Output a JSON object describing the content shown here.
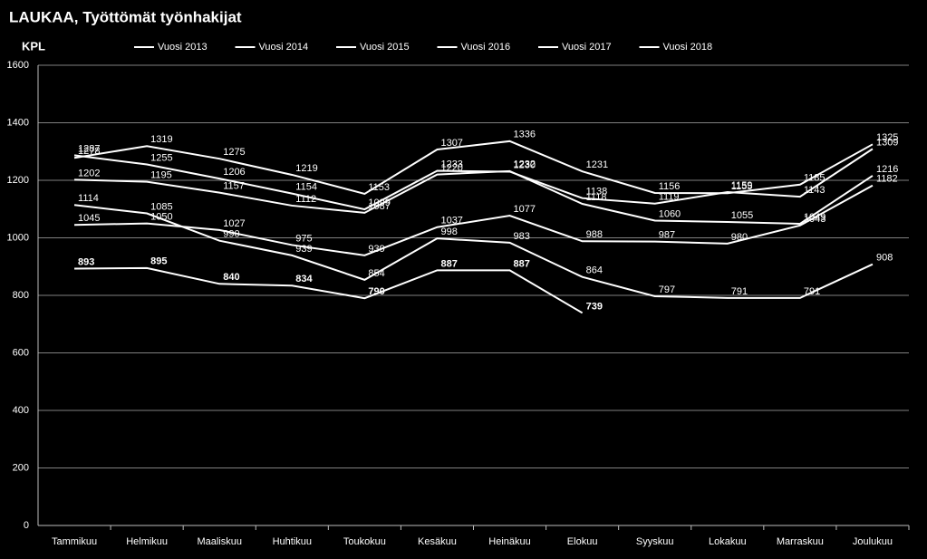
{
  "chart_data": {
    "type": "line",
    "title": "LAUKAA,  Työttömät työnhakijat",
    "y_label": "KPL",
    "categories": [
      "Tammikuu",
      "Helmikuu",
      "Maaliskuu",
      "Huhtikuu",
      "Toukokuu",
      "Kesäkuu",
      "Heinäkuu",
      "Elokuu",
      "Syyskuu",
      "Lokakuu",
      "Marraskuu",
      "Joulukuu"
    ],
    "series": [
      {
        "name": "Vuosi 2013",
        "color": "#ffffff",
        "values": [
          1045,
          1050,
          1027,
          975,
          939,
          1037,
          1077,
          988,
          987,
          980,
          1043,
          1182
        ]
      },
      {
        "name": "Vuosi 2014",
        "color": "#ffffff",
        "values": [
          1202,
          1195,
          1157,
          1112,
          1087,
          1220,
          1232,
          1118,
          1060,
          1055,
          1049,
          1216
        ]
      },
      {
        "name": "Vuosi 2015",
        "color": "#ffffff",
        "values": [
          1278,
          1319,
          1275,
          1219,
          1153,
          1307,
          1336,
          1231,
          1156,
          1155,
          1185,
          1325
        ]
      },
      {
        "name": "Vuosi 2016",
        "color": "#ffffff",
        "values": [
          1287,
          1255,
          1206,
          1154,
          1099,
          1233,
          1230,
          1138,
          1119,
          1159,
          1143,
          1309
        ]
      },
      {
        "name": "Vuosi 2017",
        "color": "#ffffff",
        "values": [
          1114,
          1085,
          990,
          939,
          854,
          998,
          983,
          864,
          797,
          791,
          791,
          908
        ]
      },
      {
        "name": "Vuosi 2018",
        "color": "#ffffff",
        "bold": true,
        "values": [
          893,
          895,
          840,
          834,
          790,
          887,
          887,
          739,
          null,
          null,
          null,
          null
        ]
      }
    ],
    "ylim": [
      0,
      1600
    ],
    "yticks": [
      0,
      200,
      400,
      600,
      800,
      1000,
      1200,
      1400,
      1600
    ],
    "grid": true
  }
}
